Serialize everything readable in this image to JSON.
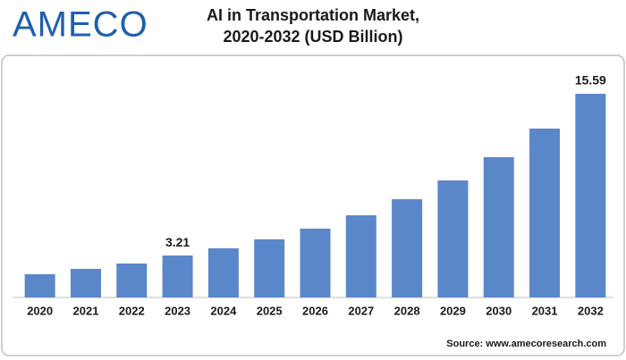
{
  "logo": "AMECO",
  "chart_data": {
    "type": "bar",
    "title": [
      "AI in Transportation Market,",
      "2020-2032 (USD Billion)"
    ],
    "categories": [
      "2020",
      "2021",
      "2022",
      "2023",
      "2024",
      "2025",
      "2026",
      "2027",
      "2028",
      "2029",
      "2030",
      "2031",
      "2032"
    ],
    "values": [
      1.78,
      2.19,
      2.6,
      3.21,
      3.76,
      4.45,
      5.27,
      6.29,
      7.52,
      8.96,
      10.74,
      12.93,
      15.59
    ],
    "value_labels": [
      null,
      null,
      null,
      "3.21",
      null,
      null,
      null,
      null,
      null,
      null,
      null,
      null,
      "15.59"
    ],
    "color": "#5a87c9",
    "source": "Source: www.amecoresearch.com"
  }
}
